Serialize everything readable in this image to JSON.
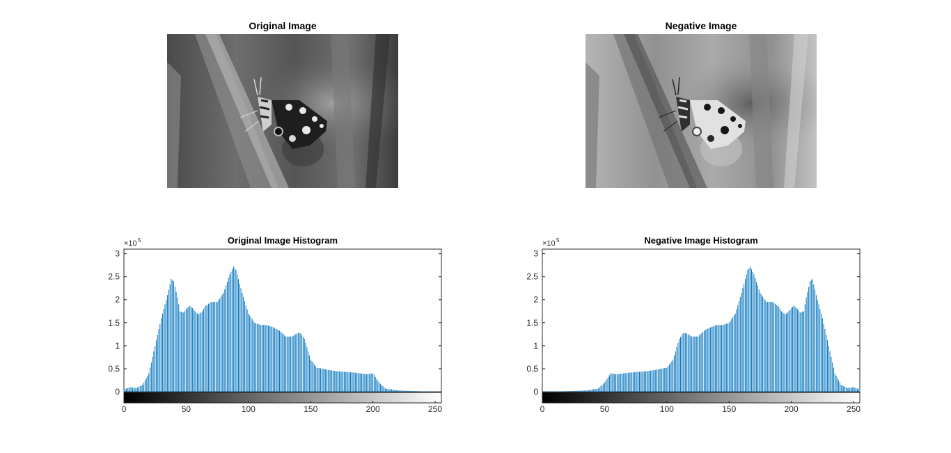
{
  "panels": {
    "original_image": {
      "title": "Original Image"
    },
    "negative_image": {
      "title": "Negative Image"
    }
  },
  "chart_data": [
    {
      "type": "bar",
      "title": "Original Image Histogram",
      "xlabel": "",
      "ylabel": "",
      "xlim": [
        0,
        255
      ],
      "ylim": [
        0,
        310000
      ],
      "y_exponent_label": "×10",
      "y_exponent_power": "5",
      "xticks": [
        0,
        50,
        100,
        150,
        200,
        250
      ],
      "yticks": [
        0,
        0.5,
        1,
        1.5,
        2,
        2.5,
        3
      ],
      "yticklabels": [
        "0",
        "0.5",
        "1",
        "1.5",
        "2",
        "2.5",
        "3"
      ],
      "colorbar": "grayscale 0-255 below x-axis",
      "color": "#0072BD",
      "x_knots": [
        0,
        5,
        10,
        15,
        20,
        25,
        30,
        35,
        38,
        40,
        43,
        45,
        48,
        50,
        53,
        55,
        58,
        60,
        63,
        65,
        70,
        75,
        80,
        85,
        88,
        90,
        95,
        100,
        105,
        110,
        115,
        120,
        125,
        130,
        135,
        140,
        142,
        145,
        150,
        155,
        160,
        165,
        170,
        180,
        190,
        195,
        200,
        205,
        210,
        220,
        230,
        240,
        255
      ],
      "y_knots": [
        5000,
        10000,
        8000,
        15000,
        40000,
        100000,
        160000,
        210000,
        245000,
        240000,
        205000,
        175000,
        172000,
        180000,
        187000,
        182000,
        172000,
        168000,
        175000,
        185000,
        195000,
        195000,
        215000,
        255000,
        272000,
        265000,
        215000,
        170000,
        150000,
        145000,
        145000,
        140000,
        133000,
        120000,
        120000,
        128000,
        127000,
        115000,
        70000,
        52000,
        50000,
        47000,
        45000,
        43000,
        40000,
        38000,
        40000,
        20000,
        7000,
        3000,
        1500,
        800,
        500
      ]
    },
    {
      "type": "bar",
      "title": "Negative Image Histogram",
      "xlabel": "",
      "ylabel": "",
      "xlim": [
        0,
        255
      ],
      "ylim": [
        0,
        310000
      ],
      "y_exponent_label": "×10",
      "y_exponent_power": "5",
      "xticks": [
        0,
        50,
        100,
        150,
        200,
        250
      ],
      "yticks": [
        0,
        0.5,
        1,
        1.5,
        2,
        2.5,
        3
      ],
      "yticklabels": [
        "0",
        "0.5",
        "1",
        "1.5",
        "2",
        "2.5",
        "3"
      ],
      "colorbar": "grayscale 0-255 below x-axis",
      "color": "#0072BD",
      "mirror_of": 0
    }
  ]
}
